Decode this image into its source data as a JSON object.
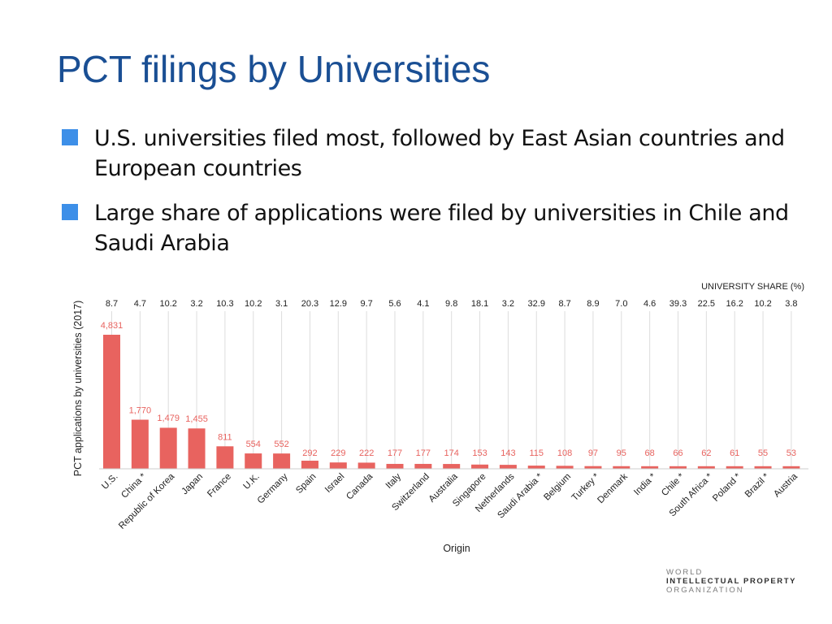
{
  "slide": {
    "title": "PCT filings by Universities",
    "bullets": [
      "U.S. universities filed most, followed by East Asian countries and European countries",
      "Large share of applications were filed by universities in Chile and Saudi Arabia"
    ]
  },
  "colors": {
    "title": "#1a4f94",
    "bullet": "#3d8fe8",
    "bar": "#e8635f",
    "bar_label": "#e8635f",
    "grid": "#dddddd"
  },
  "chart_data": {
    "type": "bar",
    "ylabel": "PCT applications by universities (2017)",
    "xlabel": "Origin",
    "secondary_label": "UNIVERSITY SHARE (%)",
    "grid": true,
    "ylim": [
      0,
      5500
    ],
    "categories": [
      "U.S.",
      "China *",
      "Republic of Korea",
      "Japan",
      "France",
      "U.K.",
      "Germany",
      "Spain",
      "Israel",
      "Canada",
      "Italy",
      "Switzerland",
      "Australia",
      "Singapore",
      "Netherlands",
      "Saudi Arabia *",
      "Belgium",
      "Turkey *",
      "Denmark",
      "India *",
      "Chile *",
      "South Africa *",
      "Poland *",
      "Brazil *",
      "Austria"
    ],
    "values": [
      4831,
      1770,
      1479,
      1455,
      811,
      554,
      552,
      292,
      229,
      222,
      177,
      177,
      174,
      153,
      143,
      115,
      108,
      97,
      95,
      68,
      66,
      62,
      61,
      55,
      53
    ],
    "value_labels": [
      "4,831",
      "1,770",
      "1,479",
      "1,455",
      "811",
      "554",
      "552",
      "292",
      "229",
      "222",
      "177",
      "177",
      "174",
      "153",
      "143",
      "115",
      "108",
      "97",
      "95",
      "68",
      "66",
      "62",
      "61",
      "55",
      "53"
    ],
    "university_share": [
      "8.7",
      "4.7",
      "10.2",
      "3.2",
      "10.3",
      "10.2",
      "3.1",
      "20.3",
      "12.9",
      "9.7",
      "5.6",
      "4.1",
      "9.8",
      "18.1",
      "3.2",
      "32.9",
      "8.7",
      "8.9",
      "7.0",
      "4.6",
      "39.3",
      "22.5",
      "16.2",
      "10.2",
      "3.8"
    ]
  },
  "logo": {
    "line1": "WORLD",
    "line2": "INTELLECTUAL PROPERTY",
    "line3": "ORGANIZATION"
  }
}
